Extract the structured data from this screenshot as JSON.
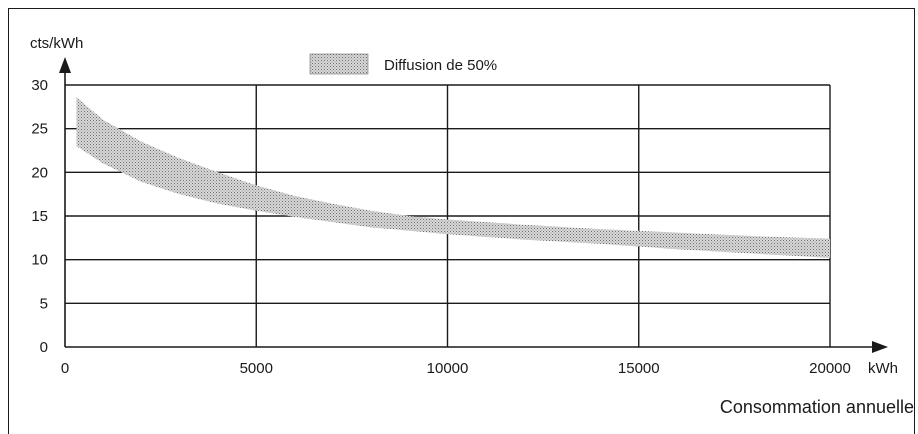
{
  "chart_data": {
    "type": "area",
    "title": "",
    "ylabel": "cts/kWh",
    "xunit": "kWh",
    "xlabel": "Consommation annuelle",
    "legend": {
      "label": "Diffusion de 50%",
      "position": "top"
    },
    "xlim": [
      0,
      20000
    ],
    "ylim": [
      0,
      30
    ],
    "xticks": [
      0,
      5000,
      10000,
      15000,
      20000
    ],
    "yticks": [
      0,
      5,
      10,
      15,
      20,
      25,
      30
    ],
    "grid": true,
    "series": [
      {
        "x": [
          300,
          1000,
          2000,
          3000,
          4000,
          5000,
          6000,
          7000,
          8000,
          9000,
          10000,
          12000,
          14000,
          16000,
          18000,
          20000
        ],
        "upper": [
          28.6,
          26.0,
          23.5,
          21.6,
          20.0,
          18.5,
          17.3,
          16.4,
          15.6,
          15.0,
          14.6,
          14.0,
          13.5,
          13.1,
          12.7,
          12.4
        ],
        "lower": [
          23.0,
          21.0,
          18.9,
          17.5,
          16.4,
          15.6,
          14.9,
          14.3,
          13.7,
          13.3,
          12.9,
          12.3,
          11.8,
          11.2,
          10.7,
          10.2
        ]
      }
    ],
    "colors": {
      "axis": "#1a1a1a",
      "grid": "#1a1a1a",
      "band": "#c8c8c8",
      "band_dots": "#6e6e6e"
    }
  }
}
